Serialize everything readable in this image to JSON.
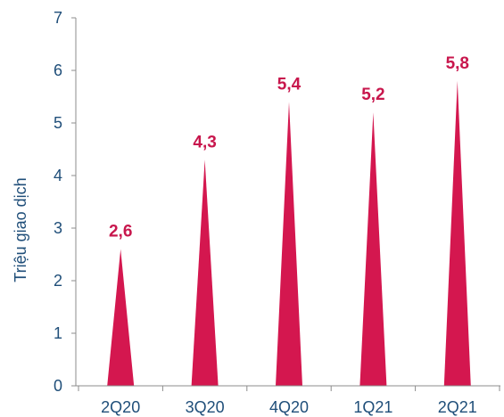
{
  "chart_data": {
    "type": "bar",
    "bar_shape": "triangle",
    "categories": [
      "2Q20",
      "3Q20",
      "4Q20",
      "1Q21",
      "2Q21"
    ],
    "values": [
      2.6,
      4.3,
      5.4,
      5.2,
      5.8
    ],
    "data_labels": [
      "2,6",
      "4,3",
      "5,4",
      "5,2",
      "5,8"
    ],
    "ylabel": "Triệu giao dịch",
    "ylim": [
      0,
      7
    ],
    "yticks": [
      "0",
      "1",
      "2",
      "3",
      "4",
      "5",
      "6",
      "7"
    ],
    "grid": false,
    "legend": "none",
    "colors": {
      "bar": "#d4174f",
      "data_label": "#c8174d",
      "axis_text": "#1f4e79",
      "axis_line": "#8c8c8c"
    }
  }
}
